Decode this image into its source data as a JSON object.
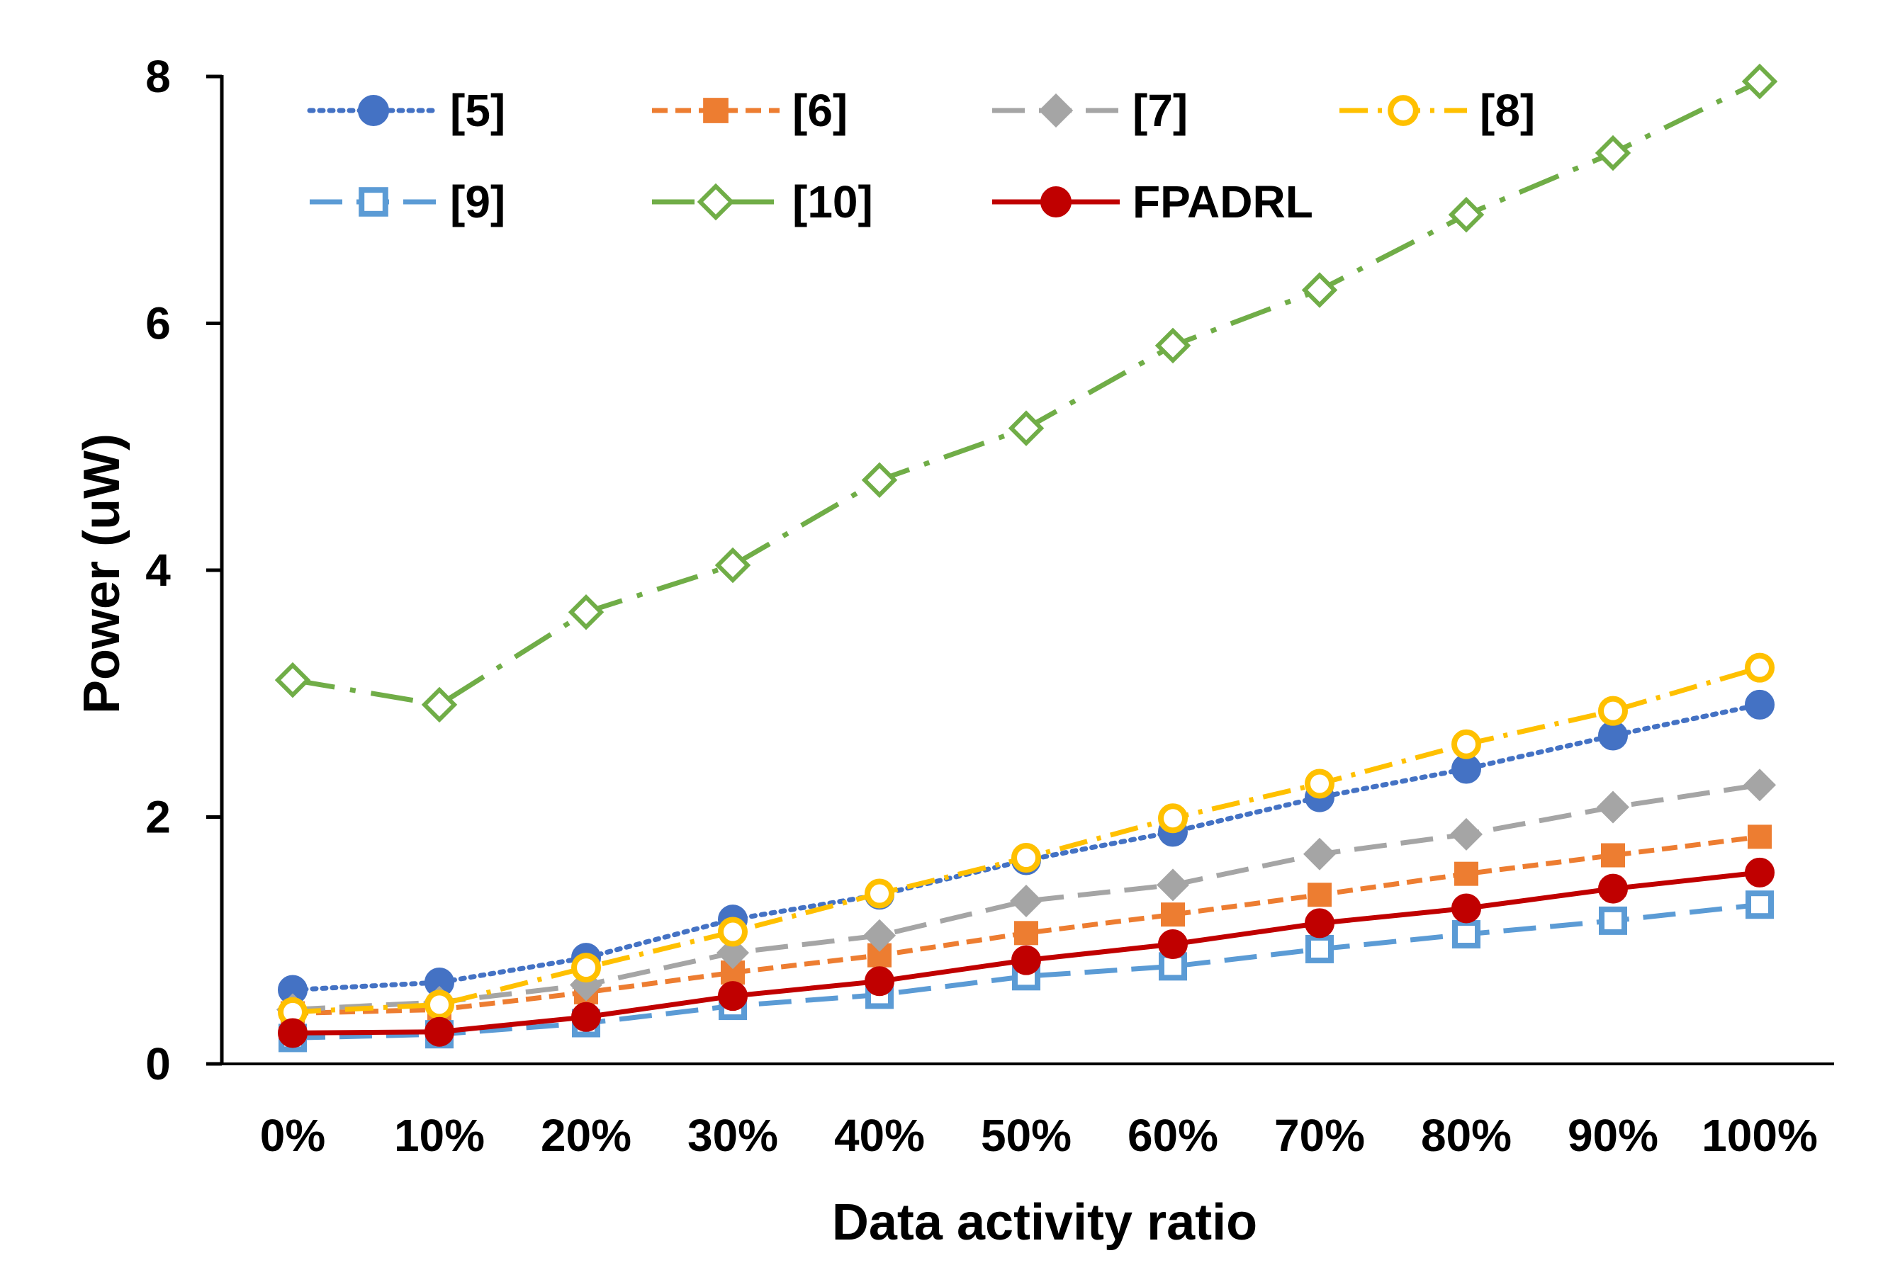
{
  "chart_data": {
    "type": "line",
    "title": "",
    "xlabel": "Data activity ratio",
    "ylabel": "Power (uW)",
    "categories": [
      "0%",
      "10%",
      "20%",
      "30%",
      "40%",
      "50%",
      "60%",
      "70%",
      "80%",
      "90%",
      "100%"
    ],
    "ylim": [
      0,
      8
    ],
    "yticks": [
      0,
      2,
      4,
      6,
      8
    ],
    "grid": false,
    "legend_position": "top",
    "series": [
      {
        "name": "[5]",
        "color": "#4472C4",
        "dash": "dotted",
        "marker": "circle-filled",
        "values": [
          0.6,
          0.66,
          0.86,
          1.17,
          1.37,
          1.65,
          1.88,
          2.16,
          2.39,
          2.66,
          2.91
        ]
      },
      {
        "name": "[6]",
        "color": "#ED7D31",
        "dash": "dashed",
        "marker": "square-filled",
        "values": [
          0.41,
          0.44,
          0.58,
          0.74,
          0.88,
          1.06,
          1.21,
          1.37,
          1.54,
          1.69,
          1.84
        ]
      },
      {
        "name": "[7]",
        "color": "#A5A5A5",
        "dash": "long-dash",
        "marker": "diamond-filled",
        "values": [
          0.44,
          0.5,
          0.64,
          0.9,
          1.04,
          1.32,
          1.45,
          1.7,
          1.86,
          2.08,
          2.26
        ]
      },
      {
        "name": "[8]",
        "color": "#FFC000",
        "dash": "dash-dot",
        "marker": "circle-open",
        "values": [
          0.42,
          0.48,
          0.78,
          1.07,
          1.38,
          1.67,
          1.99,
          2.27,
          2.59,
          2.86,
          3.21
        ]
      },
      {
        "name": "[9]",
        "color": "#5B9BD5",
        "dash": "long-dash",
        "marker": "square-open",
        "values": [
          0.21,
          0.24,
          0.33,
          0.47,
          0.56,
          0.71,
          0.79,
          0.93,
          1.05,
          1.16,
          1.29
        ]
      },
      {
        "name": "[10]",
        "color": "#70AD47",
        "dash": "long-dash-dot",
        "marker": "diamond-open",
        "values": [
          3.11,
          2.91,
          3.66,
          4.04,
          4.73,
          5.15,
          5.82,
          6.27,
          6.88,
          7.38,
          7.96
        ]
      },
      {
        "name": "FPADRL",
        "color": "#C00000",
        "dash": "solid",
        "marker": "circle-filled",
        "values": [
          0.25,
          0.26,
          0.38,
          0.55,
          0.67,
          0.84,
          0.97,
          1.14,
          1.26,
          1.42,
          1.55
        ]
      }
    ]
  }
}
